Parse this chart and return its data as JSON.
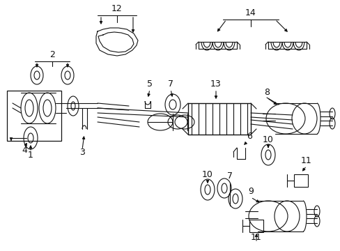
{
  "bg_color": "#ffffff",
  "line_color": "#111111",
  "fig_width": 4.89,
  "fig_height": 3.6,
  "dpi": 100
}
